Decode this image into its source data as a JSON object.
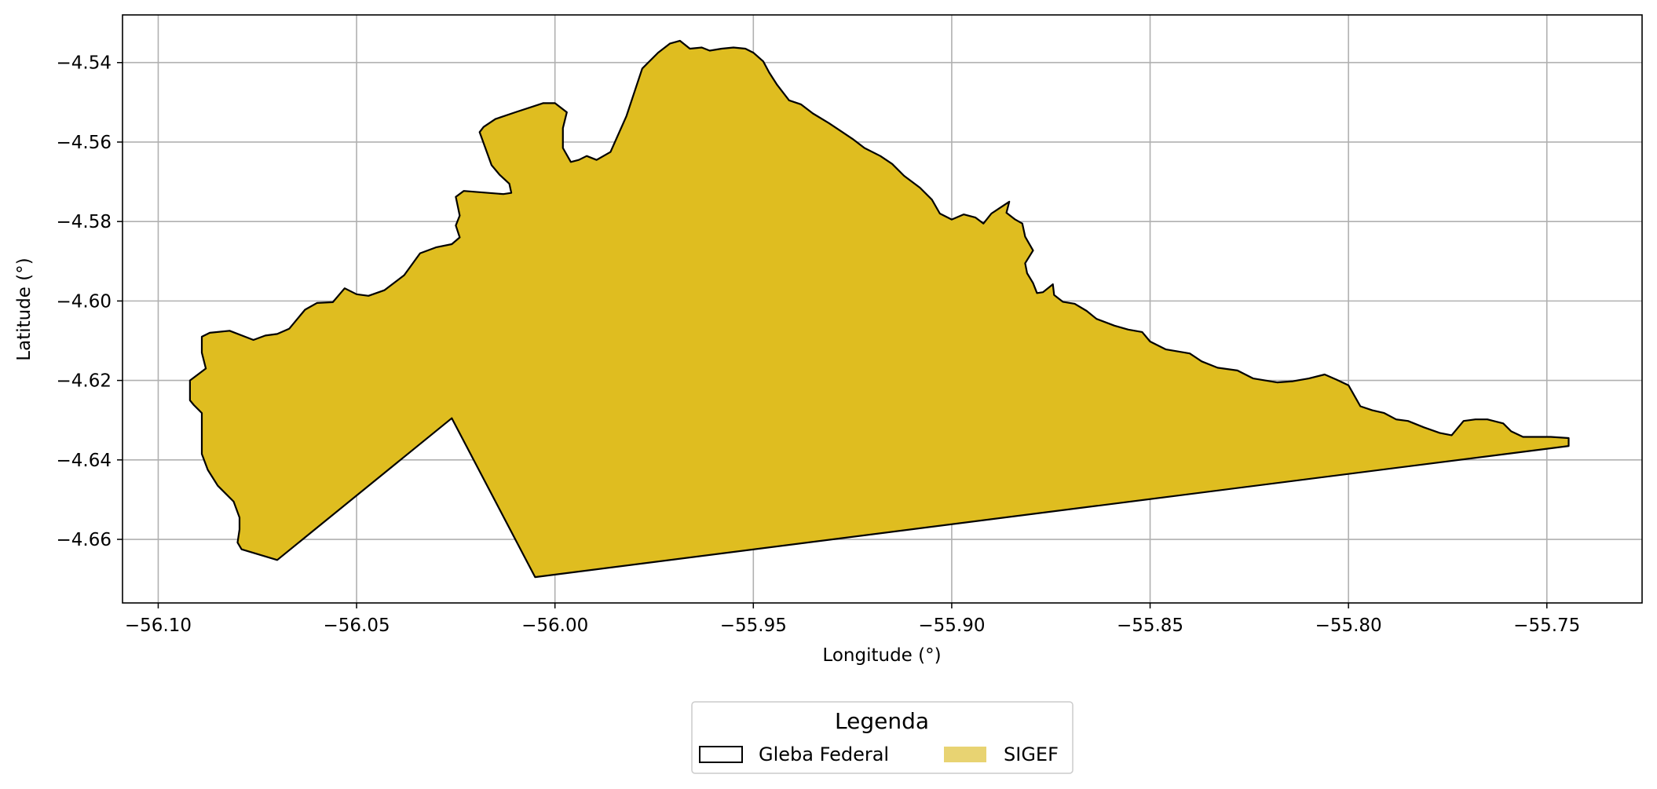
{
  "map": {
    "xlabel": "Longitude (°)",
    "ylabel": "Latitude (°)",
    "xlim": [
      -56.109,
      -55.726
    ],
    "ylim": [
      -4.676,
      -4.528
    ],
    "x_ticks": [
      -56.1,
      -56.05,
      -56.0,
      -55.95,
      -55.9,
      -55.85,
      -55.8,
      -55.75
    ],
    "x_tick_labels": [
      "−56.10",
      "−56.05",
      "−56.00",
      "−55.95",
      "−55.90",
      "−55.85",
      "−55.80",
      "−55.75"
    ],
    "y_ticks": [
      -4.54,
      -4.56,
      -4.58,
      -4.6,
      -4.62,
      -4.64,
      -4.66
    ],
    "y_tick_labels": [
      "−4.54",
      "−4.56",
      "−4.58",
      "−4.60",
      "−4.62",
      "−4.64",
      "−4.66"
    ],
    "grid": true,
    "fill_color": "#dfbd20",
    "outline_color": "#000000",
    "grid_color": "#b0b0b0",
    "polygon": [
      [
        -56.092,
        -4.62
      ],
      [
        -56.088,
        -4.617
      ],
      [
        -56.089,
        -4.613
      ],
      [
        -56.089,
        -4.609
      ],
      [
        -56.087,
        -4.608
      ],
      [
        -56.082,
        -4.6075
      ],
      [
        -56.076,
        -4.6098
      ],
      [
        -56.073,
        -4.6087
      ],
      [
        -56.07,
        -4.6083
      ],
      [
        -56.067,
        -4.607
      ],
      [
        -56.063,
        -4.6022
      ],
      [
        -56.06,
        -4.6005
      ],
      [
        -56.056,
        -4.6003
      ],
      [
        -56.053,
        -4.5968
      ],
      [
        -56.05,
        -4.5983
      ],
      [
        -56.047,
        -4.5987
      ],
      [
        -56.043,
        -4.5973
      ],
      [
        -56.038,
        -4.5935
      ],
      [
        -56.034,
        -4.588
      ],
      [
        -56.03,
        -4.5865
      ],
      [
        -56.026,
        -4.5857
      ],
      [
        -56.024,
        -4.584
      ],
      [
        -56.025,
        -4.581
      ],
      [
        -56.024,
        -4.5785
      ],
      [
        -56.025,
        -4.5738
      ],
      [
        -56.023,
        -4.5723
      ],
      [
        -56.013,
        -4.5731
      ],
      [
        -56.011,
        -4.5728
      ],
      [
        -56.0115,
        -4.5705
      ],
      [
        -56.014,
        -4.5682
      ],
      [
        -56.016,
        -4.5658
      ],
      [
        -56.017,
        -4.563
      ],
      [
        -56.019,
        -4.5575
      ],
      [
        -56.018,
        -4.5562
      ],
      [
        -56.015,
        -4.5542
      ],
      [
        -56.01,
        -4.5525
      ],
      [
        -56.003,
        -4.5502
      ],
      [
        -56.0,
        -4.5502
      ],
      [
        -55.997,
        -4.5525
      ],
      [
        -55.998,
        -4.5565
      ],
      [
        -55.998,
        -4.5615
      ],
      [
        -55.996,
        -4.565
      ],
      [
        -55.994,
        -4.5645
      ],
      [
        -55.992,
        -4.5635
      ],
      [
        -55.9895,
        -4.5645
      ],
      [
        -55.986,
        -4.5625
      ],
      [
        -55.982,
        -4.5535
      ],
      [
        -55.98,
        -4.5475
      ],
      [
        -55.978,
        -4.5415
      ],
      [
        -55.974,
        -4.5375
      ],
      [
        -55.971,
        -4.5352
      ],
      [
        -55.9685,
        -4.5345
      ],
      [
        -55.966,
        -4.5365
      ],
      [
        -55.963,
        -4.5362
      ],
      [
        -55.961,
        -4.537
      ],
      [
        -55.958,
        -4.5365
      ],
      [
        -55.955,
        -4.5362
      ],
      [
        -55.952,
        -4.5365
      ],
      [
        -55.95,
        -4.5375
      ],
      [
        -55.9475,
        -4.5397
      ],
      [
        -55.946,
        -4.5425
      ],
      [
        -55.944,
        -4.5456
      ],
      [
        -55.941,
        -4.5495
      ],
      [
        -55.938,
        -4.5505
      ],
      [
        -55.935,
        -4.5528
      ],
      [
        -55.931,
        -4.5552
      ],
      [
        -55.928,
        -4.5572
      ],
      [
        -55.925,
        -4.5592
      ],
      [
        -55.922,
        -4.5615
      ],
      [
        -55.918,
        -4.5635
      ],
      [
        -55.915,
        -4.5655
      ],
      [
        -55.912,
        -4.5685
      ],
      [
        -55.908,
        -4.5715
      ],
      [
        -55.905,
        -4.5745
      ],
      [
        -55.903,
        -4.578
      ],
      [
        -55.9,
        -4.5795
      ],
      [
        -55.897,
        -4.5782
      ],
      [
        -55.894,
        -4.579
      ],
      [
        -55.892,
        -4.5805
      ],
      [
        -55.89,
        -4.578
      ],
      [
        -55.887,
        -4.576
      ],
      [
        -55.8855,
        -4.575
      ],
      [
        -55.8862,
        -4.5778
      ],
      [
        -55.884,
        -4.5795
      ],
      [
        -55.8822,
        -4.5805
      ],
      [
        -55.8815,
        -4.5838
      ],
      [
        -55.8795,
        -4.5873
      ],
      [
        -55.8815,
        -4.5905
      ],
      [
        -55.881,
        -4.593
      ],
      [
        -55.8795,
        -4.5955
      ],
      [
        -55.8785,
        -4.598
      ],
      [
        -55.877,
        -4.5978
      ],
      [
        -55.8745,
        -4.5958
      ],
      [
        -55.8742,
        -4.5985
      ],
      [
        -55.872,
        -4.6002
      ],
      [
        -55.869,
        -4.6007
      ],
      [
        -55.866,
        -4.6025
      ],
      [
        -55.8635,
        -4.6045
      ],
      [
        -55.859,
        -4.6062
      ],
      [
        -55.8555,
        -4.6072
      ],
      [
        -55.852,
        -4.6078
      ],
      [
        -55.85,
        -4.6102
      ],
      [
        -55.846,
        -4.6122
      ],
      [
        -55.84,
        -4.6132
      ],
      [
        -55.837,
        -4.6152
      ],
      [
        -55.833,
        -4.6168
      ],
      [
        -55.828,
        -4.6175
      ],
      [
        -55.824,
        -4.6195
      ],
      [
        -55.818,
        -4.6205
      ],
      [
        -55.814,
        -4.6202
      ],
      [
        -55.81,
        -4.6195
      ],
      [
        -55.806,
        -4.6185
      ],
      [
        -55.803,
        -4.6198
      ],
      [
        -55.8,
        -4.6212
      ],
      [
        -55.797,
        -4.6265
      ],
      [
        -55.794,
        -4.6275
      ],
      [
        -55.791,
        -4.6282
      ],
      [
        -55.788,
        -4.6298
      ],
      [
        -55.785,
        -4.6302
      ],
      [
        -55.781,
        -4.6318
      ],
      [
        -55.777,
        -4.6332
      ],
      [
        -55.774,
        -4.6338
      ],
      [
        -55.771,
        -4.6302
      ],
      [
        -55.768,
        -4.6298
      ],
      [
        -55.765,
        -4.6298
      ],
      [
        -55.761,
        -4.6308
      ],
      [
        -55.759,
        -4.6328
      ],
      [
        -55.756,
        -4.6342
      ],
      [
        -55.752,
        -4.6342
      ],
      [
        -55.749,
        -4.6342
      ],
      [
        -55.7445,
        -4.6345
      ],
      [
        -55.7445,
        -4.6365
      ],
      [
        -56.005,
        -4.6695
      ],
      [
        -56.026,
        -4.6295
      ],
      [
        -56.07,
        -4.6652
      ],
      [
        -56.079,
        -4.6625
      ],
      [
        -56.08,
        -4.6608
      ],
      [
        -56.0795,
        -4.6575
      ],
      [
        -56.0795,
        -4.6545
      ],
      [
        -56.081,
        -4.6505
      ],
      [
        -56.085,
        -4.6465
      ],
      [
        -56.0875,
        -4.6425
      ],
      [
        -56.089,
        -4.6385
      ],
      [
        -56.089,
        -4.6355
      ],
      [
        -56.089,
        -4.6282
      ],
      [
        -56.091,
        -4.6262
      ],
      [
        -56.092,
        -4.625
      ]
    ]
  },
  "legend": {
    "title": "Legenda",
    "items": [
      {
        "label": "Gleba Federal",
        "style": "outline",
        "color": "#000000"
      },
      {
        "label": "SIGEF",
        "style": "fill",
        "color": "#e8d372"
      }
    ]
  }
}
